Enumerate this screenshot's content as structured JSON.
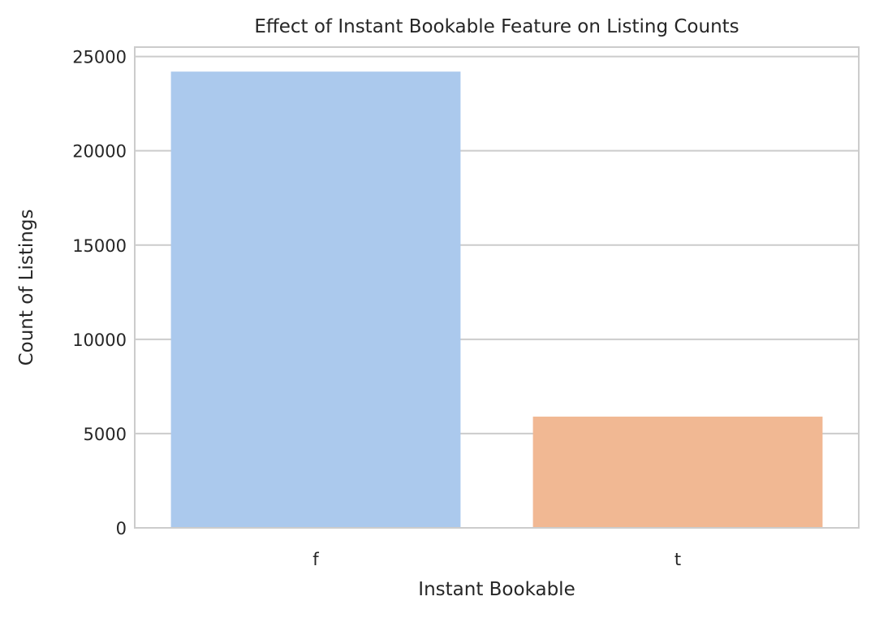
{
  "chart_data": {
    "type": "bar",
    "title": "Effect of Instant Bookable Feature on Listing Counts",
    "xlabel": "Instant Bookable",
    "ylabel": "Count of Listings",
    "categories": [
      "f",
      "t"
    ],
    "values": [
      24200,
      5900
    ],
    "colors": [
      "#abc9ed",
      "#f1b893"
    ],
    "ylim": [
      0,
      25500
    ],
    "yticks": [
      0,
      5000,
      10000,
      15000,
      20000,
      25000
    ],
    "grid": "horizontal",
    "legend": "none"
  }
}
